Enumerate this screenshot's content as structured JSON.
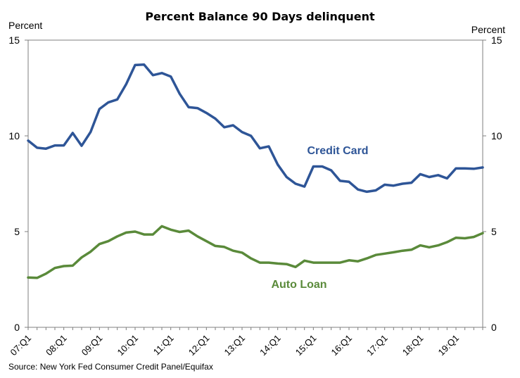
{
  "chart_data": {
    "type": "line",
    "title": "Percent Balance 90 Days delinquent",
    "ylabel_left": "Percent",
    "ylabel_right": "Percent",
    "ylim": [
      0,
      15
    ],
    "yticks": [
      0,
      5,
      10,
      15
    ],
    "x_tick_labels": [
      "07:Q1",
      "08:Q1",
      "09:Q1",
      "10:Q1",
      "11:Q1",
      "12:Q1",
      "13:Q1",
      "14:Q1",
      "15:Q1",
      "16:Q1",
      "17:Q1",
      "18:Q1",
      "19:Q1"
    ],
    "source": "Source: New York Fed Consumer Credit Panel/Equifax",
    "series": [
      {
        "name": "Credit Card",
        "color": "#2E5597",
        "values": [
          9.75,
          9.38,
          9.33,
          9.5,
          9.5,
          10.15,
          9.48,
          10.2,
          11.4,
          11.75,
          11.9,
          12.7,
          13.7,
          13.72,
          13.17,
          13.28,
          13.1,
          12.2,
          11.5,
          11.45,
          11.2,
          10.9,
          10.45,
          10.55,
          10.2,
          10.0,
          9.35,
          9.45,
          8.5,
          7.85,
          7.5,
          7.35,
          8.4,
          8.4,
          8.2,
          7.65,
          7.6,
          7.2,
          7.08,
          7.15,
          7.45,
          7.4,
          7.5,
          7.55,
          8.0,
          7.85,
          7.95,
          7.78,
          8.3,
          8.3,
          8.28,
          8.35
        ]
      },
      {
        "name": "Auto Loan",
        "color": "#5A8A3A",
        "values": [
          2.6,
          2.58,
          2.8,
          3.1,
          3.2,
          3.22,
          3.65,
          3.95,
          4.35,
          4.5,
          4.75,
          4.95,
          5.0,
          4.85,
          4.85,
          5.28,
          5.1,
          4.98,
          5.05,
          4.75,
          4.5,
          4.25,
          4.2,
          4.0,
          3.9,
          3.6,
          3.38,
          3.38,
          3.33,
          3.3,
          3.15,
          3.48,
          3.38,
          3.38,
          3.38,
          3.38,
          3.5,
          3.45,
          3.6,
          3.78,
          3.85,
          3.92,
          4.0,
          4.05,
          4.28,
          4.18,
          4.28,
          4.45,
          4.68,
          4.65,
          4.72,
          4.92
        ]
      }
    ]
  }
}
